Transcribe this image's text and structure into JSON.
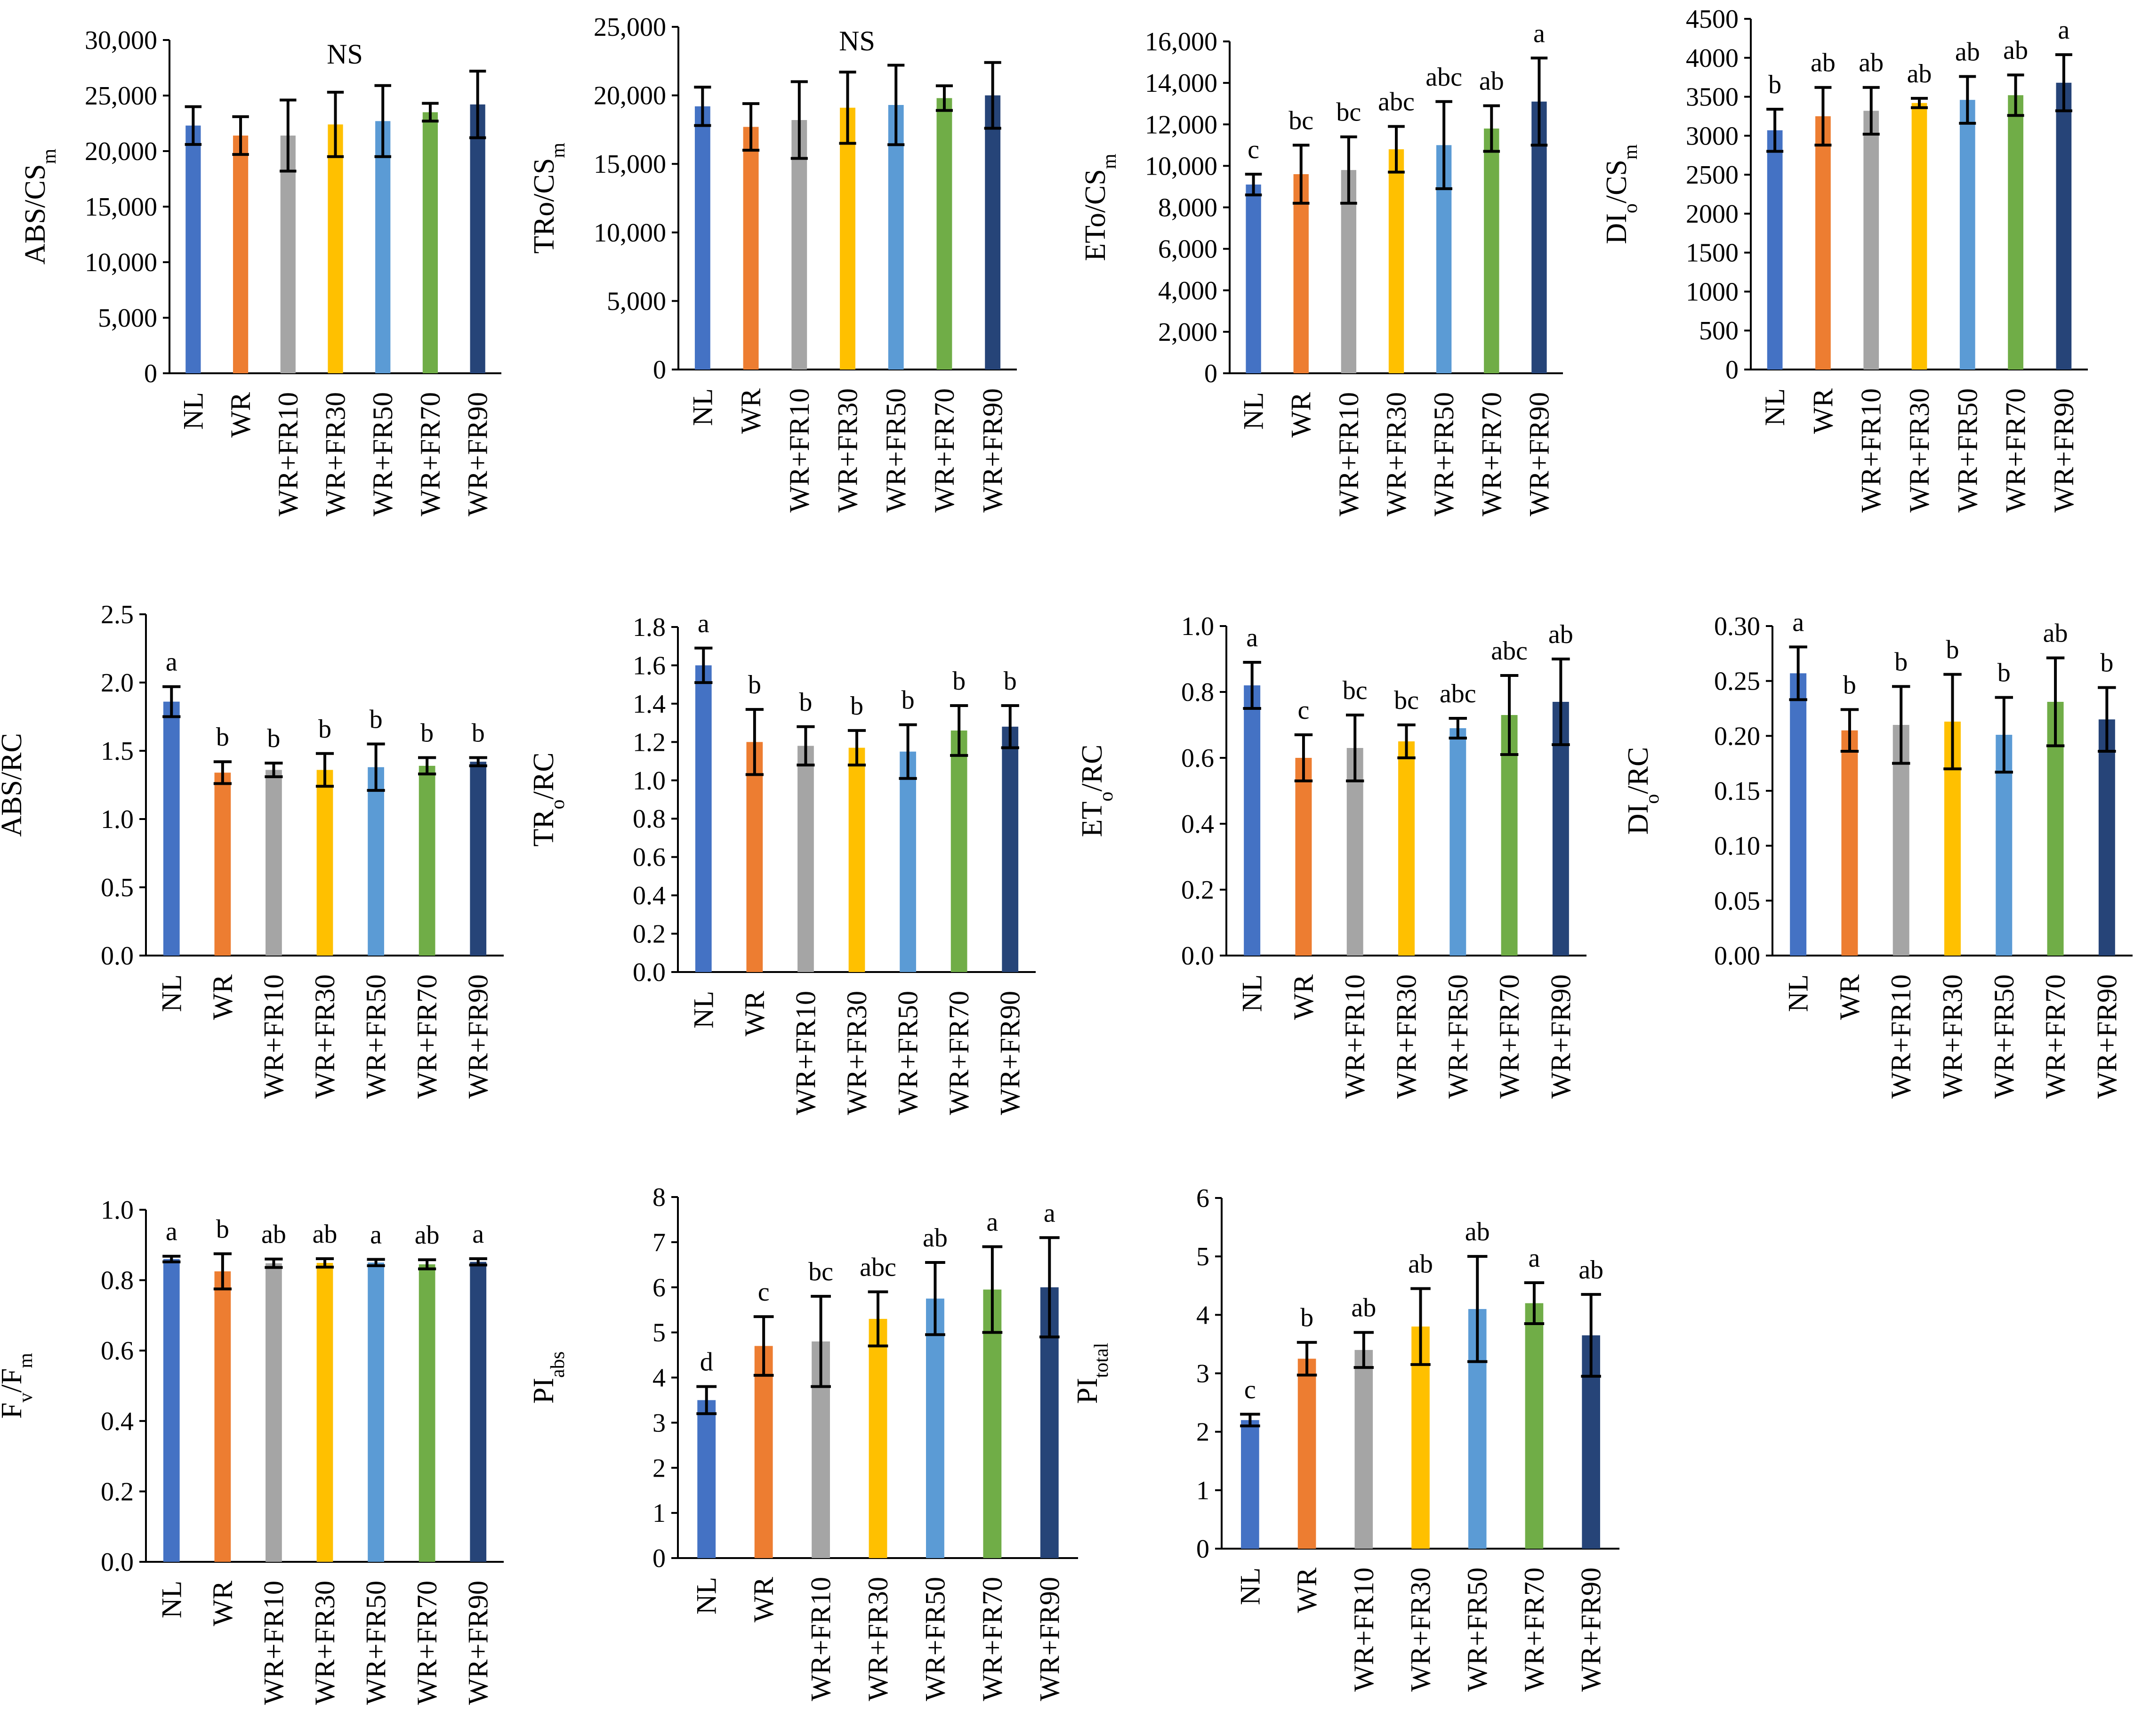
{
  "categories": [
    "NL",
    "WR",
    "WR+FR10",
    "WR+FR30",
    "WR+FR50",
    "WR+FR70",
    "WR+FR90"
  ],
  "colors": [
    "#4472C4",
    "#ED7D31",
    "#A5A5A5",
    "#FFC000",
    "#5B9BD5",
    "#70AD47",
    "#264478"
  ],
  "chart_data": [
    {
      "type": "bar",
      "ylabel": {
        "main": "ABS/CS",
        "sub": "m",
        "after": ""
      },
      "ylim": [
        0,
        30000
      ],
      "yticks": [
        "0",
        "5,000",
        "10,000",
        "15,000",
        "20,000",
        "25,000",
        "30,000"
      ],
      "values": [
        22300,
        21400,
        21400,
        22400,
        22700,
        23500,
        24200
      ],
      "errors": [
        1700,
        1700,
        3200,
        2900,
        3200,
        800,
        3000
      ],
      "note": "NS",
      "sig": []
    },
    {
      "type": "bar",
      "ylabel": {
        "main": "TRo/CS",
        "sub": "m",
        "after": ""
      },
      "ylim": [
        0,
        25000
      ],
      "yticks": [
        "0",
        "5,000",
        "10,000",
        "15,000",
        "20,000",
        "25,000"
      ],
      "values": [
        19200,
        17700,
        18200,
        19100,
        19300,
        19800,
        20000
      ],
      "errors": [
        1400,
        1700,
        2800,
        2600,
        2900,
        900,
        2400
      ],
      "note": "NS",
      "sig": []
    },
    {
      "type": "bar",
      "ylabel": {
        "main": "ETo/CS",
        "sub": "m",
        "after": ""
      },
      "ylim": [
        0,
        16000
      ],
      "yticks": [
        "0",
        "2,000",
        "4,000",
        "6,000",
        "8,000",
        "10,000",
        "12,000",
        "14,000",
        "16,000"
      ],
      "values": [
        9100,
        9600,
        9800,
        10800,
        11000,
        11800,
        13100
      ],
      "errors": [
        500,
        1400,
        1600,
        1100,
        2100,
        1100,
        2100
      ],
      "note": "",
      "sig": [
        "c",
        "bc",
        "bc",
        "abc",
        "abc",
        "ab",
        "a"
      ]
    },
    {
      "type": "bar",
      "ylabel": {
        "main": "DI",
        "sub": "o",
        "after": "/CS",
        "sub2": "m"
      },
      "ylim": [
        0,
        4500
      ],
      "yticks": [
        "0",
        "500",
        "1000",
        "1500",
        "2000",
        "2500",
        "3000",
        "3500",
        "4000",
        "4500"
      ],
      "values": [
        3070,
        3250,
        3320,
        3420,
        3460,
        3520,
        3680
      ],
      "errors": [
        270,
        370,
        300,
        60,
        300,
        260,
        360
      ],
      "note": "",
      "sig": [
        "b",
        "ab",
        "ab",
        "ab",
        "ab",
        "ab",
        "a"
      ]
    },
    {
      "type": "bar",
      "ylabel": {
        "main": "ABS/RC",
        "sub": "",
        "after": ""
      },
      "ylim": [
        0,
        2.5
      ],
      "yticks": [
        "0.0",
        "0.5",
        "1.0",
        "1.5",
        "2.0",
        "2.5"
      ],
      "values": [
        1.86,
        1.34,
        1.36,
        1.36,
        1.38,
        1.39,
        1.42
      ],
      "errors": [
        0.11,
        0.08,
        0.05,
        0.12,
        0.17,
        0.06,
        0.03
      ],
      "note": "",
      "sig": [
        "a",
        "b",
        "b",
        "b",
        "b",
        "b",
        "b"
      ]
    },
    {
      "type": "bar",
      "ylabel": {
        "main": "TR",
        "sub": "o",
        "after": "/RC"
      },
      "ylim": [
        0,
        1.8
      ],
      "yticks": [
        "0.0",
        "0.2",
        "0.4",
        "0.6",
        "0.8",
        "1.0",
        "1.2",
        "1.4",
        "1.6",
        "1.8"
      ],
      "values": [
        1.6,
        1.2,
        1.18,
        1.17,
        1.15,
        1.26,
        1.28
      ],
      "errors": [
        0.09,
        0.17,
        0.1,
        0.09,
        0.14,
        0.13,
        0.11
      ],
      "note": "",
      "sig": [
        "a",
        "b",
        "b",
        "b",
        "b",
        "b",
        "b"
      ]
    },
    {
      "type": "bar",
      "ylabel": {
        "main": "ET",
        "sub": "o",
        "after": "/RC"
      },
      "ylim": [
        0,
        1.0
      ],
      "yticks": [
        "0.0",
        "0.2",
        "0.4",
        "0.6",
        "0.8",
        "1.0"
      ],
      "values": [
        0.82,
        0.6,
        0.63,
        0.65,
        0.69,
        0.73,
        0.77
      ],
      "errors": [
        0.07,
        0.07,
        0.1,
        0.05,
        0.03,
        0.12,
        0.13
      ],
      "note": "",
      "sig": [
        "a",
        "c",
        "bc",
        "bc",
        "abc",
        "abc",
        "ab"
      ]
    },
    {
      "type": "bar",
      "ylabel": {
        "main": "DI",
        "sub": "o",
        "after": "/RC"
      },
      "ylim": [
        0,
        0.3
      ],
      "yticks": [
        "0.00",
        "0.05",
        "0.10",
        "0.15",
        "0.20",
        "0.25",
        "0.30"
      ],
      "values": [
        0.257,
        0.205,
        0.21,
        0.213,
        0.201,
        0.231,
        0.215
      ],
      "errors": [
        0.024,
        0.019,
        0.035,
        0.043,
        0.034,
        0.04,
        0.029
      ],
      "note": "",
      "sig": [
        "a",
        "b",
        "b",
        "b",
        "b",
        "ab",
        "b"
      ]
    },
    {
      "type": "bar",
      "ylabel": {
        "main": "F",
        "sub": "v",
        "after": "/F",
        "sub2": "m"
      },
      "ylim": [
        0,
        1.0
      ],
      "yticks": [
        "0.0",
        "0.2",
        "0.4",
        "0.6",
        "0.8",
        "1.0"
      ],
      "values": [
        0.86,
        0.825,
        0.848,
        0.849,
        0.85,
        0.845,
        0.852
      ],
      "errors": [
        0.008,
        0.05,
        0.012,
        0.012,
        0.009,
        0.013,
        0.009
      ],
      "note": "",
      "sig": [
        "a",
        "b",
        "ab",
        "ab",
        "a",
        "ab",
        "a"
      ]
    },
    {
      "type": "bar",
      "ylabel": {
        "main": "PI",
        "sub": "abs",
        "after": ""
      },
      "ylim": [
        0,
        8
      ],
      "yticks": [
        "0",
        "1",
        "2",
        "3",
        "4",
        "5",
        "6",
        "7",
        "8"
      ],
      "values": [
        3.5,
        4.7,
        4.8,
        5.3,
        5.75,
        5.95,
        6.0
      ],
      "errors": [
        0.3,
        0.65,
        1.0,
        0.6,
        0.8,
        0.95,
        1.1
      ],
      "note": "",
      "sig": [
        "d",
        "c",
        "bc",
        "abc",
        "ab",
        "a",
        "a"
      ]
    },
    {
      "type": "bar",
      "ylabel": {
        "main": "PI",
        "sub": "total",
        "after": ""
      },
      "ylim": [
        0,
        6
      ],
      "yticks": [
        "0",
        "1",
        "2",
        "3",
        "4",
        "5",
        "6"
      ],
      "values": [
        2.2,
        3.25,
        3.4,
        3.8,
        4.1,
        4.2,
        3.65
      ],
      "errors": [
        0.1,
        0.28,
        0.3,
        0.65,
        0.9,
        0.35,
        0.7
      ],
      "note": "",
      "sig": [
        "c",
        "b",
        "ab",
        "ab",
        "ab",
        "a",
        "ab"
      ]
    }
  ]
}
